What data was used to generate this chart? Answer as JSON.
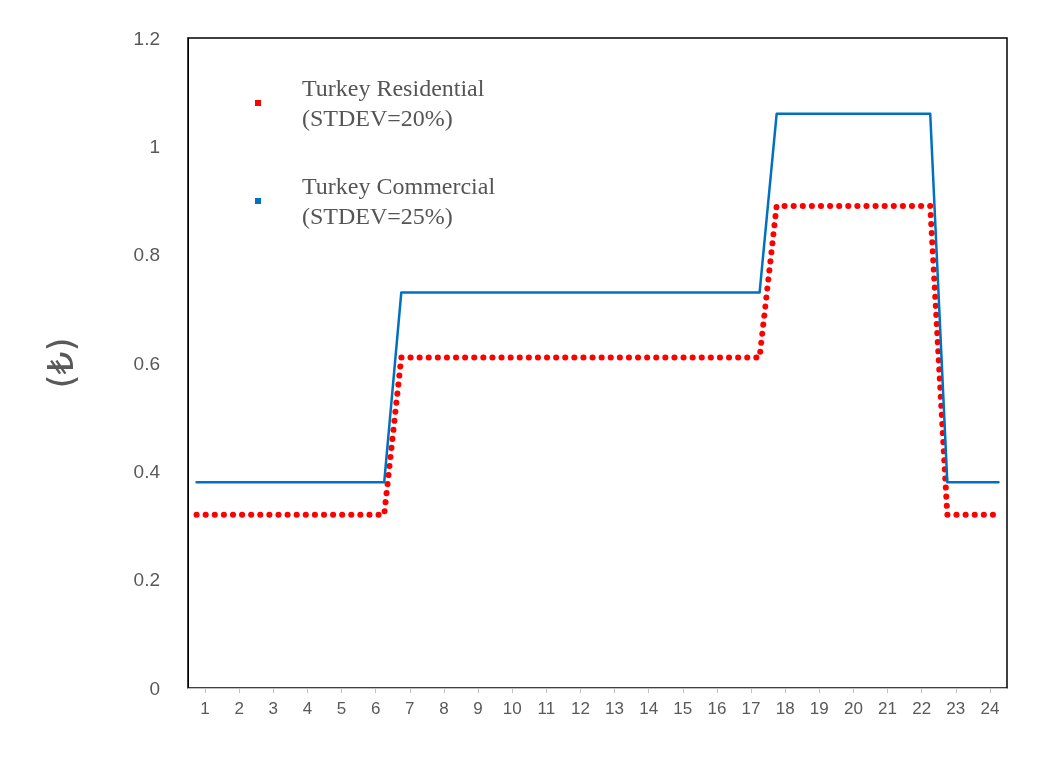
{
  "chart_data": {
    "type": "line",
    "ylabel": "(₺)",
    "x": [
      0.25,
      0.75,
      1.25,
      1.75,
      2.25,
      2.75,
      3.25,
      3.75,
      4.25,
      4.75,
      5.25,
      5.75,
      6.25,
      6.75,
      7.25,
      7.75,
      8.25,
      8.75,
      9.25,
      9.75,
      10.25,
      10.75,
      11.25,
      11.75,
      12.25,
      12.75,
      13.25,
      13.75,
      14.25,
      14.75,
      15.25,
      15.75,
      16.25,
      16.75,
      17.25,
      17.75,
      18.25,
      18.75,
      19.25,
      19.75,
      20.25,
      20.75,
      21.25,
      21.75,
      22.25,
      22.75,
      23.25,
      23.75
    ],
    "series": [
      {
        "name": "Turkey Residential (STDEV=20%)",
        "color": "#ff0000",
        "line_style": "dotted",
        "values": [
          0.32,
          0.32,
          0.32,
          0.32,
          0.32,
          0.32,
          0.32,
          0.32,
          0.32,
          0.32,
          0.32,
          0.32,
          0.61,
          0.61,
          0.61,
          0.61,
          0.61,
          0.61,
          0.61,
          0.61,
          0.61,
          0.61,
          0.61,
          0.61,
          0.61,
          0.61,
          0.61,
          0.61,
          0.61,
          0.61,
          0.61,
          0.61,
          0.61,
          0.61,
          0.89,
          0.89,
          0.89,
          0.89,
          0.89,
          0.89,
          0.89,
          0.89,
          0.89,
          0.89,
          0.32,
          0.32,
          0.32,
          0.32
        ]
      },
      {
        "name": "Turkey Commercial (STDEV=25%)",
        "color": "#0070c0",
        "line_style": "solid",
        "values": [
          0.38,
          0.38,
          0.38,
          0.38,
          0.38,
          0.38,
          0.38,
          0.38,
          0.38,
          0.38,
          0.38,
          0.38,
          0.73,
          0.73,
          0.73,
          0.73,
          0.73,
          0.73,
          0.73,
          0.73,
          0.73,
          0.73,
          0.73,
          0.73,
          0.73,
          0.73,
          0.73,
          0.73,
          0.73,
          0.73,
          0.73,
          0.73,
          0.73,
          0.73,
          1.06,
          1.06,
          1.06,
          1.06,
          1.06,
          1.06,
          1.06,
          1.06,
          1.06,
          1.06,
          0.38,
          0.38,
          0.38,
          0.38
        ]
      }
    ],
    "xlim": [
      0,
      24
    ],
    "xticks": [
      {
        "value": 0.5,
        "label": "1"
      },
      {
        "value": 1.5,
        "label": "2"
      },
      {
        "value": 2.5,
        "label": "3"
      },
      {
        "value": 3.5,
        "label": "4"
      },
      {
        "value": 4.5,
        "label": "5"
      },
      {
        "value": 5.5,
        "label": "6"
      },
      {
        "value": 6.5,
        "label": "7"
      },
      {
        "value": 7.5,
        "label": "8"
      },
      {
        "value": 8.5,
        "label": "9"
      },
      {
        "value": 9.5,
        "label": "10"
      },
      {
        "value": 10.5,
        "label": "11"
      },
      {
        "value": 11.5,
        "label": "12"
      },
      {
        "value": 12.5,
        "label": "13"
      },
      {
        "value": 13.5,
        "label": "14"
      },
      {
        "value": 14.5,
        "label": "15"
      },
      {
        "value": 15.5,
        "label": "16"
      },
      {
        "value": 16.5,
        "label": "17"
      },
      {
        "value": 17.5,
        "label": "18"
      },
      {
        "value": 18.5,
        "label": "19"
      },
      {
        "value": 19.5,
        "label": "20"
      },
      {
        "value": 20.5,
        "label": "21"
      },
      {
        "value": 21.5,
        "label": "22"
      },
      {
        "value": 22.5,
        "label": "23"
      },
      {
        "value": 23.5,
        "label": "24"
      }
    ],
    "ylim": [
      0,
      1.2
    ],
    "yticks": [
      0,
      0.2,
      0.4,
      0.6,
      0.8,
      1,
      1.2
    ],
    "grid": false,
    "legend": "top left",
    "marker": "none"
  }
}
